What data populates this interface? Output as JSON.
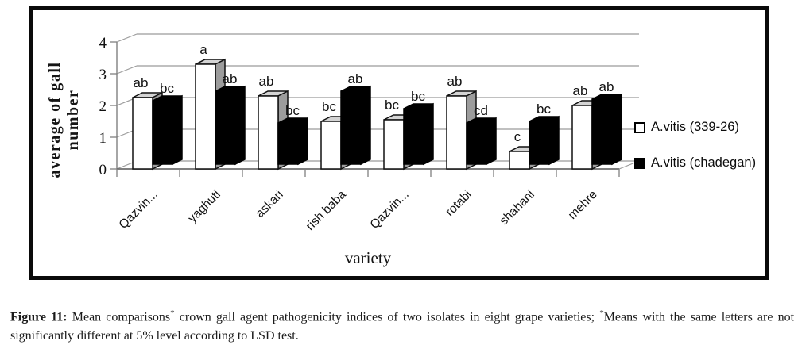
{
  "chart_data": {
    "type": "bar",
    "variant": "3d-clustered-column",
    "title": "",
    "xlabel": "variety",
    "ylabel": "average of gall number",
    "ylim": [
      0,
      4
    ],
    "yticks": [
      0,
      1,
      2,
      3,
      4
    ],
    "grid": true,
    "legend_position": "right",
    "categories": [
      "Qazvin...",
      "yaghuti",
      "askari",
      "rish baba",
      "Qazvin...",
      "rotabi",
      "shahani",
      "mehre"
    ],
    "series": [
      {
        "name": "A.vitis (339-26)",
        "fill": "#ffffff",
        "values": [
          2.25,
          3.3,
          2.3,
          1.5,
          1.55,
          2.3,
          0.55,
          2.0
        ],
        "sig_letters": [
          "ab",
          "a",
          "ab",
          "bc",
          "bc",
          "ab",
          "c",
          "ab"
        ]
      },
      {
        "name": "A.vitis (chadegan)",
        "fill": "#000000",
        "values": [
          2.0,
          2.3,
          1.3,
          2.3,
          1.75,
          1.3,
          1.35,
          2.05
        ],
        "sig_letters": [
          "bc",
          "ab",
          "bc",
          "ab",
          "bc",
          "cd",
          "bc",
          "ab"
        ]
      }
    ]
  },
  "colors": {
    "frame": "#0a0a0a",
    "grid": "#9a9a9a",
    "axis": "#808080",
    "bar_outline": "#111111",
    "white_bar_top": "#d4d4d4",
    "white_bar_side": "#9c9c9c"
  },
  "caption": {
    "label": "Figure 11:",
    "part1": "Mean comparisons",
    "sup1": "*",
    "part2": "crown gall agent pathogenicity indices of two isolates in eight grape varieties;",
    "sup2": "*",
    "part3": "Means with the same letters are not significantly different at 5% level according to LSD test."
  }
}
